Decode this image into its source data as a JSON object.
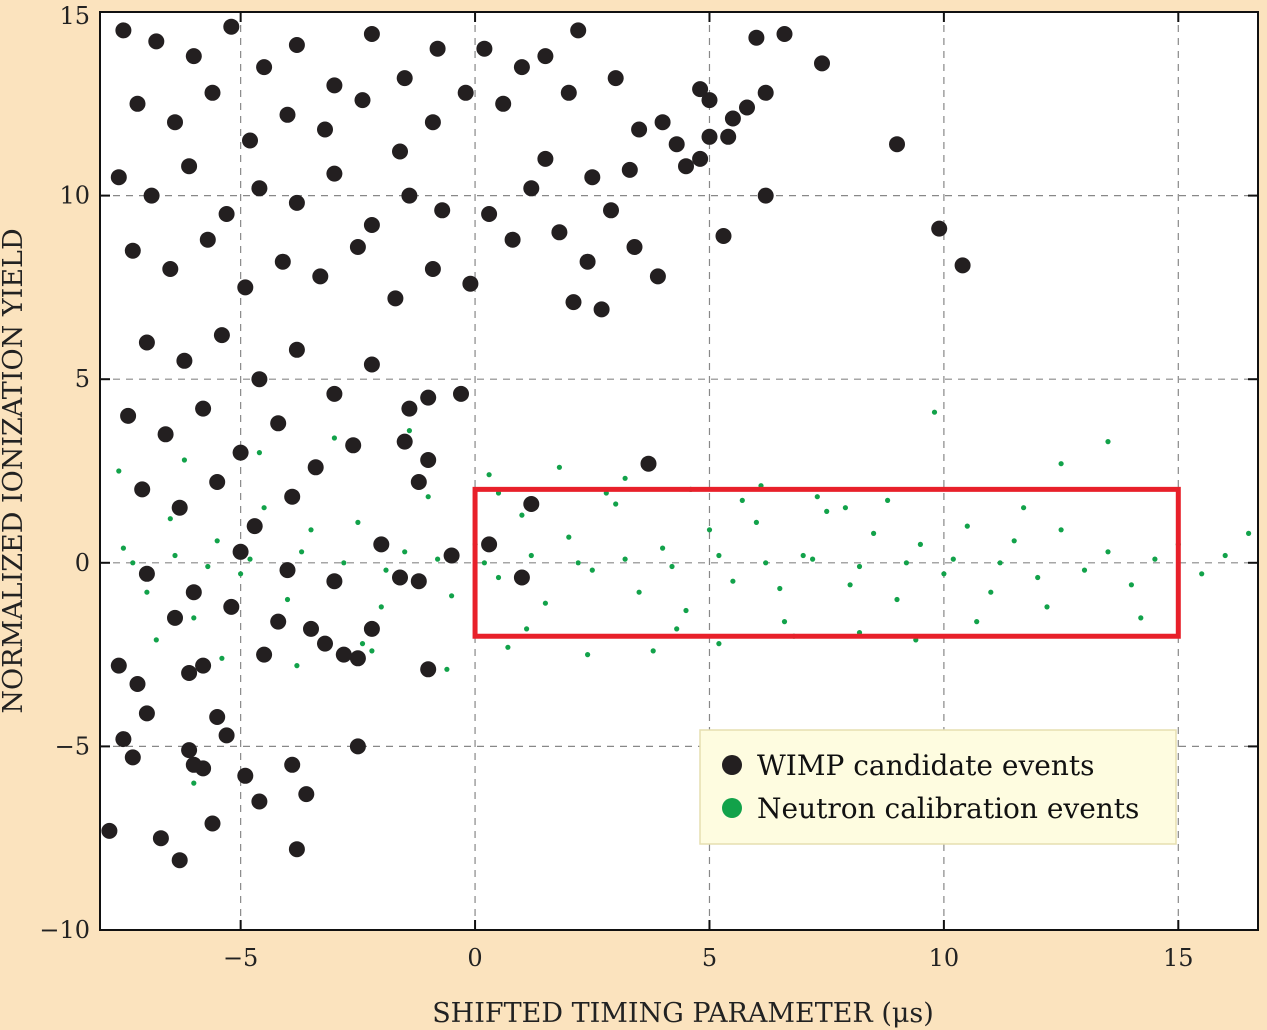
{
  "chart_data": {
    "type": "scatter",
    "title": "",
    "xlabel": "SHIFTED TIMING PARAMETER (μs)",
    "ylabel": "NORMALIZED IONIZATION YIELD",
    "xlim": [
      -8,
      16.7
    ],
    "ylim": [
      -10,
      15
    ],
    "x_ticks": [
      -5,
      0,
      5,
      10,
      15
    ],
    "x_tick_labels": [
      "−5",
      "0",
      "5",
      "10",
      "15"
    ],
    "y_ticks": [
      -10,
      -5,
      0,
      5,
      10,
      15
    ],
    "y_tick_labels": [
      "−10",
      "−5",
      "0",
      "5",
      "10",
      "15"
    ],
    "grid": true,
    "legend_placement": "bottom-right",
    "signal_region": {
      "x": [
        0,
        15
      ],
      "y": [
        -2,
        2
      ],
      "color": "#e8202a"
    },
    "series": [
      {
        "name": "WIMP candidate events",
        "color": "#231f20",
        "marker": "large-dot",
        "points": [
          [
            -7.5,
            14.5
          ],
          [
            -6.8,
            14.2
          ],
          [
            -6.0,
            13.8
          ],
          [
            -5.2,
            14.6
          ],
          [
            -4.5,
            13.5
          ],
          [
            -3.8,
            14.1
          ],
          [
            -3.0,
            13.0
          ],
          [
            -2.2,
            14.4
          ],
          [
            -1.5,
            13.2
          ],
          [
            -0.8,
            14.0
          ],
          [
            -7.2,
            12.5
          ],
          [
            -6.4,
            12.0
          ],
          [
            -5.6,
            12.8
          ],
          [
            -4.8,
            11.5
          ],
          [
            -4.0,
            12.2
          ],
          [
            -3.2,
            11.8
          ],
          [
            -2.4,
            12.6
          ],
          [
            -1.6,
            11.2
          ],
          [
            -0.9,
            12.0
          ],
          [
            -0.2,
            12.8
          ],
          [
            -7.6,
            10.5
          ],
          [
            -6.9,
            10.0
          ],
          [
            -6.1,
            10.8
          ],
          [
            -5.3,
            9.5
          ],
          [
            -4.6,
            10.2
          ],
          [
            -3.8,
            9.8
          ],
          [
            -3.0,
            10.6
          ],
          [
            -2.2,
            9.2
          ],
          [
            -1.4,
            10.0
          ],
          [
            -0.7,
            9.6
          ],
          [
            -7.3,
            8.5
          ],
          [
            -6.5,
            8.0
          ],
          [
            -5.7,
            8.8
          ],
          [
            -4.9,
            7.5
          ],
          [
            -4.1,
            8.2
          ],
          [
            -3.3,
            7.8
          ],
          [
            -2.5,
            8.6
          ],
          [
            -1.7,
            7.2
          ],
          [
            -0.9,
            8.0
          ],
          [
            -0.1,
            7.6
          ],
          [
            -7.0,
            6.0
          ],
          [
            -6.2,
            5.5
          ],
          [
            -5.4,
            6.2
          ],
          [
            -4.6,
            5.0
          ],
          [
            -3.8,
            5.8
          ],
          [
            -3.0,
            4.6
          ],
          [
            -2.2,
            5.4
          ],
          [
            -1.4,
            4.2
          ],
          [
            -7.4,
            4.0
          ],
          [
            -6.6,
            3.5
          ],
          [
            -5.8,
            4.2
          ],
          [
            -5.0,
            3.0
          ],
          [
            -4.2,
            3.8
          ],
          [
            -3.4,
            2.6
          ],
          [
            -2.6,
            3.2
          ],
          [
            -7.1,
            2.0
          ],
          [
            -6.3,
            1.5
          ],
          [
            -5.5,
            2.2
          ],
          [
            -4.7,
            1.0
          ],
          [
            -3.9,
            1.8
          ],
          [
            0.2,
            14.0
          ],
          [
            0.6,
            12.5
          ],
          [
            1.0,
            13.5
          ],
          [
            1.5,
            11.0
          ],
          [
            2.0,
            12.8
          ],
          [
            2.5,
            10.5
          ],
          [
            3.0,
            13.2
          ],
          [
            3.5,
            11.8
          ],
          [
            4.0,
            12.0
          ],
          [
            4.5,
            10.8
          ],
          [
            0.3,
            9.5
          ],
          [
            0.8,
            8.8
          ],
          [
            1.2,
            10.2
          ],
          [
            1.8,
            9.0
          ],
          [
            2.4,
            8.2
          ],
          [
            2.9,
            9.6
          ],
          [
            3.4,
            8.6
          ],
          [
            3.9,
            7.8
          ],
          [
            1.5,
            13.8
          ],
          [
            2.2,
            14.5
          ],
          [
            5.0,
            12.6
          ],
          [
            5.5,
            12.1
          ],
          [
            6.0,
            14.3
          ],
          [
            6.6,
            14.4
          ],
          [
            7.4,
            13.6
          ],
          [
            5.8,
            12.4
          ],
          [
            6.2,
            12.8
          ],
          [
            5.4,
            11.6
          ],
          [
            4.8,
            12.9
          ],
          [
            4.3,
            11.4
          ],
          [
            9.0,
            11.4
          ],
          [
            6.2,
            10.0
          ],
          [
            5.3,
            8.9
          ],
          [
            9.9,
            9.1
          ],
          [
            10.4,
            8.1
          ],
          [
            4.8,
            11.0
          ],
          [
            5.0,
            11.6
          ],
          [
            3.3,
            10.7
          ],
          [
            2.1,
            7.1
          ],
          [
            2.7,
            6.9
          ],
          [
            -1.5,
            3.3
          ],
          [
            -1.0,
            4.5
          ],
          [
            -0.3,
            4.6
          ],
          [
            1.2,
            1.6
          ],
          [
            -2.0,
            0.5
          ],
          [
            -1.6,
            -0.4
          ],
          [
            1.0,
            -0.4
          ],
          [
            -3.0,
            -0.5
          ],
          [
            -4.0,
            -0.2
          ],
          [
            -5.0,
            0.3
          ],
          [
            -6.0,
            -0.8
          ],
          [
            -7.0,
            -0.3
          ],
          [
            -2.5,
            -2.6
          ],
          [
            -2.8,
            -2.5
          ],
          [
            -3.5,
            -1.8
          ],
          [
            -4.2,
            -1.6
          ],
          [
            -4.5,
            -2.5
          ],
          [
            -5.2,
            -1.2
          ],
          [
            -5.8,
            -2.8
          ],
          [
            -6.4,
            -1.5
          ],
          [
            -1.0,
            -2.9
          ],
          [
            -1.2,
            2.2
          ],
          [
            -1.0,
            2.8
          ],
          [
            -7.6,
            -2.8
          ],
          [
            -7.2,
            -3.3
          ],
          [
            -7.0,
            -4.1
          ],
          [
            -6.1,
            -3.0
          ],
          [
            -5.5,
            -4.2
          ],
          [
            -5.3,
            -4.7
          ],
          [
            -6.1,
            -5.1
          ],
          [
            -5.8,
            -5.6
          ],
          [
            -6.0,
            -5.5
          ],
          [
            -7.5,
            -4.8
          ],
          [
            -7.3,
            -5.3
          ],
          [
            -4.9,
            -5.8
          ],
          [
            -3.9,
            -5.5
          ],
          [
            -3.6,
            -6.3
          ],
          [
            -4.6,
            -6.5
          ],
          [
            -5.6,
            -7.1
          ],
          [
            -6.7,
            -7.5
          ],
          [
            -7.8,
            -7.3
          ],
          [
            -6.3,
            -8.1
          ],
          [
            -3.8,
            -7.8
          ],
          [
            -2.5,
            -5.0
          ],
          [
            -1.2,
            -0.5
          ],
          [
            -0.5,
            0.2
          ],
          [
            0.3,
            0.5
          ],
          [
            -2.2,
            -1.8
          ],
          [
            -3.2,
            -2.2
          ],
          [
            3.7,
            2.7
          ]
        ]
      },
      {
        "name": "Neutron calibration events",
        "color": "#12a24a",
        "marker": "small-dot",
        "points": [
          [
            -7.5,
            0.4
          ],
          [
            -7.0,
            -0.8
          ],
          [
            -6.5,
            1.2
          ],
          [
            -6.0,
            -1.5
          ],
          [
            -5.5,
            0.6
          ],
          [
            -5.0,
            -0.3
          ],
          [
            -4.5,
            1.5
          ],
          [
            -4.0,
            -1.0
          ],
          [
            -3.5,
            0.9
          ],
          [
            -3.0,
            -0.6
          ],
          [
            -2.5,
            1.1
          ],
          [
            -2.0,
            -1.2
          ],
          [
            -1.5,
            0.3
          ],
          [
            -1.0,
            1.8
          ],
          [
            -0.5,
            -0.9
          ],
          [
            0.0,
            0.5
          ],
          [
            0.5,
            -0.4
          ],
          [
            1.0,
            1.3
          ],
          [
            1.5,
            -1.1
          ],
          [
            2.0,
            0.7
          ],
          [
            2.5,
            -0.2
          ],
          [
            3.0,
            1.6
          ],
          [
            3.5,
            -0.8
          ],
          [
            4.0,
            0.4
          ],
          [
            4.5,
            -1.3
          ],
          [
            5.0,
            0.9
          ],
          [
            5.5,
            -0.5
          ],
          [
            6.0,
            1.1
          ],
          [
            6.5,
            -0.7
          ],
          [
            7.0,
            0.2
          ],
          [
            7.5,
            1.4
          ],
          [
            8.0,
            -0.6
          ],
          [
            8.5,
            0.8
          ],
          [
            9.0,
            -1.0
          ],
          [
            9.5,
            0.5
          ],
          [
            10.0,
            -0.3
          ],
          [
            10.5,
            1.0
          ],
          [
            11.0,
            -0.8
          ],
          [
            11.5,
            0.6
          ],
          [
            12.0,
            -0.4
          ],
          [
            12.5,
            0.9
          ],
          [
            13.0,
            -0.2
          ],
          [
            13.5,
            0.3
          ],
          [
            14.0,
            -0.6
          ],
          [
            14.5,
            0.1
          ],
          [
            15.0,
            0.5
          ],
          [
            15.5,
            -0.3
          ],
          [
            16.0,
            0.2
          ],
          [
            16.5,
            0.8
          ],
          [
            11.7,
            1.5
          ],
          [
            0.3,
            2.4
          ],
          [
            1.8,
            2.6
          ],
          [
            3.2,
            2.3
          ],
          [
            4.6,
            2.0
          ],
          [
            6.1,
            2.1
          ],
          [
            7.3,
            1.8
          ],
          [
            8.8,
            1.7
          ],
          [
            9.8,
            4.1
          ],
          [
            12.5,
            2.7
          ],
          [
            13.5,
            3.3
          ],
          [
            0.7,
            -2.3
          ],
          [
            2.4,
            -2.5
          ],
          [
            3.8,
            -2.4
          ],
          [
            5.2,
            -2.2
          ],
          [
            6.8,
            -2.0
          ],
          [
            8.2,
            -1.9
          ],
          [
            9.4,
            -2.1
          ],
          [
            10.7,
            -1.6
          ],
          [
            12.2,
            -1.2
          ],
          [
            14.2,
            -1.5
          ],
          [
            -7.6,
            2.5
          ],
          [
            -6.8,
            -2.1
          ],
          [
            -6.2,
            2.8
          ],
          [
            -5.4,
            -2.6
          ],
          [
            -4.6,
            3.0
          ],
          [
            -3.8,
            -2.8
          ],
          [
            -3.0,
            3.4
          ],
          [
            -2.2,
            -2.4
          ],
          [
            -1.4,
            3.6
          ],
          [
            -0.6,
            -2.9
          ],
          [
            -7.3,
            0.0
          ],
          [
            -6.4,
            0.2
          ],
          [
            -5.7,
            -0.1
          ],
          [
            -4.8,
            0.1
          ],
          [
            -3.7,
            0.3
          ],
          [
            -2.8,
            0.0
          ],
          [
            -1.9,
            -0.2
          ],
          [
            -0.8,
            0.1
          ],
          [
            0.2,
            0.0
          ],
          [
            1.2,
            0.2
          ],
          [
            2.2,
            0.0
          ],
          [
            3.2,
            0.1
          ],
          [
            4.2,
            -0.1
          ],
          [
            5.2,
            0.2
          ],
          [
            6.2,
            0.0
          ],
          [
            7.2,
            0.1
          ],
          [
            8.2,
            -0.1
          ],
          [
            9.2,
            0.0
          ],
          [
            10.2,
            0.1
          ],
          [
            11.2,
            0.0
          ],
          [
            -6.0,
            -6.0
          ],
          [
            -2.4,
            -2.2
          ],
          [
            -1.0,
            -3.0
          ],
          [
            0.5,
            1.9
          ],
          [
            1.1,
            -1.8
          ],
          [
            2.8,
            1.9
          ],
          [
            4.3,
            -1.8
          ],
          [
            5.7,
            1.7
          ],
          [
            6.6,
            -1.6
          ],
          [
            7.9,
            1.5
          ]
        ]
      }
    ]
  }
}
